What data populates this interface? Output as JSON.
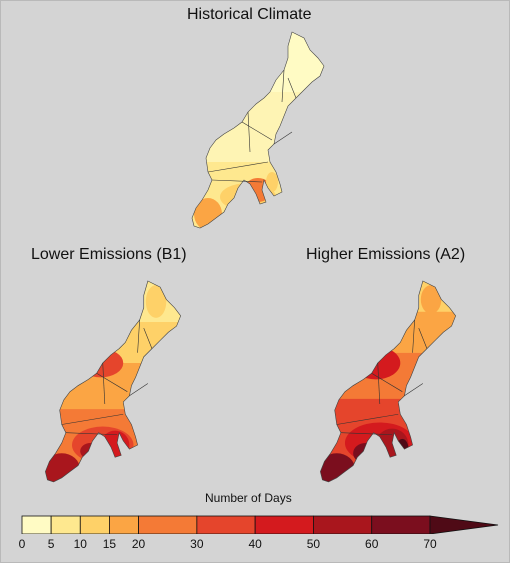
{
  "titles": {
    "historical": "Historical Climate",
    "lower": "Lower Emissions (B1)",
    "higher": "Higher Emissions (A2)"
  },
  "legend": {
    "title": "Number of Days",
    "bins": [
      0,
      5,
      10,
      15,
      20,
      30,
      40,
      50,
      60,
      70
    ],
    "colors": [
      "#fffbc4",
      "#fee88f",
      "#fed168",
      "#fba544",
      "#f47a36",
      "#e5452c",
      "#d41a1e",
      "#a9161d",
      "#7b0e1e",
      "#4f0a16"
    ],
    "open_ended_max": true
  },
  "maps": [
    {
      "id": "historical",
      "region": "Northeast United States",
      "intensity": "low (mostly 0-10 days, up to ~20-30 in south)"
    },
    {
      "id": "lower",
      "region": "Northeast United States",
      "intensity": "moderate (10-40 days, up to ~50-60 in south)"
    },
    {
      "id": "higher",
      "region": "Northeast United States",
      "intensity": "high (15-60 days, up to 70+ in south)"
    }
  ]
}
